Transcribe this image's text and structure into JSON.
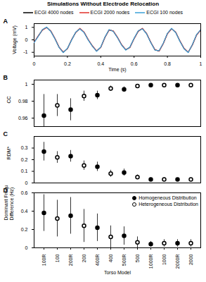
{
  "chart_data": [
    {
      "type": "line",
      "panel": "A",
      "title": "Simulations Without Electrode Relocation",
      "xlabel": "Time (s)",
      "ylabel": "Voltage (mV)",
      "x": [
        0,
        0.025,
        0.05,
        0.075,
        0.1,
        0.125,
        0.15,
        0.175,
        0.2,
        0.225,
        0.25,
        0.275,
        0.3,
        0.325,
        0.35,
        0.375,
        0.4,
        0.425,
        0.45,
        0.475,
        0.5,
        0.525,
        0.55,
        0.575,
        0.6,
        0.625,
        0.65,
        0.675,
        0.7,
        0.725,
        0.75,
        0.775,
        0.8,
        0.825,
        0.85,
        0.875,
        0.9,
        0.925,
        0.95,
        0.975,
        1
      ],
      "xlim": [
        0,
        1
      ],
      "xticks": [
        0,
        0.2,
        0.4,
        0.6,
        0.8,
        1
      ],
      "ylim": [
        -1.3,
        1.3
      ],
      "yticks": [
        -1,
        0,
        1
      ],
      "legend": "top",
      "series": [
        {
          "name": "ECGI 4000 nodes",
          "color": "#000000",
          "values": [
            -0.2,
            0.3,
            0.8,
            1.0,
            0.7,
            0.1,
            -0.6,
            -1.0,
            -0.7,
            0.0,
            0.6,
            0.9,
            0.6,
            0.0,
            -0.5,
            -0.9,
            -0.6,
            0.2,
            0.8,
            0.7,
            0.2,
            -0.4,
            -0.8,
            -0.6,
            0.1,
            0.7,
            0.9,
            0.5,
            -0.2,
            -0.8,
            -0.9,
            -0.3,
            0.5,
            0.9,
            0.6,
            -0.1,
            -0.7,
            -1.0,
            -0.4,
            0.4,
            0.8
          ]
        },
        {
          "name": "ECGI 2000 nodes",
          "color": "#e0302a",
          "values": [
            -0.18,
            0.32,
            0.78,
            0.98,
            0.72,
            0.12,
            -0.58,
            -0.98,
            -0.72,
            0.02,
            0.58,
            0.92,
            0.62,
            0.02,
            -0.48,
            -0.88,
            -0.62,
            0.18,
            0.78,
            0.72,
            0.22,
            -0.38,
            -0.78,
            -0.62,
            0.08,
            0.68,
            0.92,
            0.52,
            -0.18,
            -0.78,
            -0.92,
            -0.32,
            0.48,
            0.88,
            0.62,
            -0.08,
            -0.68,
            -0.98,
            -0.42,
            0.38,
            0.78
          ]
        },
        {
          "name": "ECGI 100 nodes",
          "color": "#3aa0d8",
          "values": [
            -0.22,
            0.28,
            0.82,
            1.02,
            0.68,
            0.08,
            -0.62,
            -1.02,
            -0.68,
            -0.02,
            0.62,
            0.88,
            0.58,
            -0.02,
            -0.52,
            -0.92,
            -0.58,
            0.22,
            0.82,
            0.68,
            0.18,
            -0.42,
            -0.82,
            -0.58,
            0.12,
            0.72,
            0.88,
            0.48,
            -0.22,
            -0.82,
            -0.88,
            -0.28,
            0.52,
            0.92,
            0.58,
            -0.12,
            -0.72,
            -1.02,
            -0.38,
            0.42,
            0.82
          ]
        }
      ]
    },
    {
      "type": "scatter",
      "panel": "B",
      "ylabel": "CC",
      "categories": [
        "100R",
        "100",
        "200R",
        "200",
        "400R",
        "400",
        "500R",
        "500",
        "1000R",
        "1000",
        "2000R",
        "2000"
      ],
      "ylim": [
        0.95,
        1.005
      ],
      "yticks": [
        0.96,
        0.98,
        1
      ],
      "tick_labels": "y",
      "series": [
        {
          "name": "Homogeneous Distribution",
          "color": "#000000",
          "marker": "filled_circle",
          "values": [
            0.963,
            null,
            0.97,
            null,
            0.987,
            null,
            0.994,
            null,
            0.999,
            null,
            0.999,
            null
          ],
          "errors": [
            0.025,
            null,
            0.013,
            null,
            0.005,
            null,
            0.003,
            null,
            0.001,
            null,
            0.001,
            null
          ]
        },
        {
          "name": "Heterogeneous Distribution",
          "color": "#000000",
          "marker": "open_circle",
          "values": [
            null,
            0.975,
            null,
            0.986,
            null,
            0.995,
            null,
            0.998,
            null,
            0.999,
            null,
            0.999
          ],
          "errors": [
            null,
            0.013,
            null,
            0.006,
            null,
            0.003,
            null,
            0.002,
            null,
            0.001,
            null,
            0.001
          ]
        }
      ]
    },
    {
      "type": "scatter",
      "panel": "C",
      "ylabel": "RDM*",
      "categories": [
        "100R",
        "100",
        "200R",
        "200",
        "400R",
        "400",
        "500R",
        "500",
        "1000R",
        "1000",
        "2000R",
        "2000"
      ],
      "ylim": [
        0,
        0.4
      ],
      "yticks": [
        0,
        0.1,
        0.2,
        0.3
      ],
      "tick_labels": "y",
      "series": [
        {
          "name": "Homogeneous Distribution",
          "color": "#000000",
          "marker": "filled_circle",
          "values": [
            0.27,
            null,
            0.23,
            null,
            0.14,
            null,
            0.09,
            null,
            0.03,
            null,
            0.03,
            null
          ],
          "errors": [
            0.08,
            null,
            0.05,
            null,
            0.04,
            null,
            0.03,
            null,
            0.015,
            null,
            0.01,
            null
          ]
        },
        {
          "name": "Heterogeneous Distribution",
          "color": "#000000",
          "marker": "open_circle",
          "values": [
            null,
            0.22,
            null,
            0.15,
            null,
            0.08,
            null,
            0.05,
            null,
            0.03,
            null,
            0.03
          ],
          "errors": [
            null,
            0.05,
            null,
            0.04,
            null,
            0.03,
            null,
            0.02,
            null,
            0.015,
            null,
            0.01
          ]
        }
      ]
    },
    {
      "type": "scatter",
      "panel": "D",
      "ylabel": "Dominant Frequencies Difference (Hz)",
      "xlabel": "Torso Model",
      "categories": [
        "100R",
        "100",
        "200R",
        "200",
        "400R",
        "400",
        "500R",
        "500",
        "1000R",
        "1000",
        "2000R",
        "2000"
      ],
      "ylim": [
        0,
        0.6
      ],
      "yticks": [
        0,
        0.2,
        0.4,
        0.6
      ],
      "legend": "top-right",
      "series": [
        {
          "name": "Homogeneous Distribution",
          "color": "#000000",
          "marker": "filled_circle",
          "values": [
            0.38,
            null,
            0.35,
            null,
            0.22,
            null,
            0.13,
            null,
            0.04,
            null,
            0.05,
            null
          ],
          "errors": [
            0.2,
            null,
            0.2,
            null,
            0.15,
            null,
            0.1,
            null,
            0.03,
            null,
            0.04,
            null
          ]
        },
        {
          "name": "Heterogeneous Distribution",
          "color": "#000000",
          "marker": "open_circle",
          "values": [
            null,
            0.32,
            null,
            0.24,
            null,
            0.12,
            null,
            0.06,
            null,
            0.05,
            null,
            0.05
          ],
          "errors": [
            null,
            0.2,
            null,
            0.18,
            null,
            0.12,
            null,
            0.06,
            null,
            0.04,
            null,
            0.04
          ]
        }
      ]
    }
  ]
}
